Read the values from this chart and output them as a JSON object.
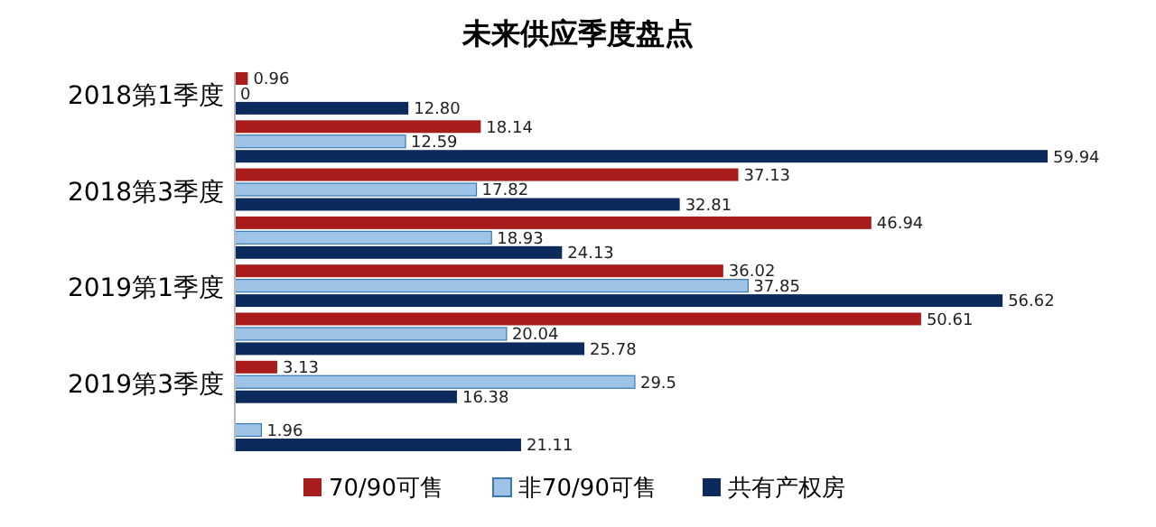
{
  "chart_data": {
    "type": "bar",
    "orientation": "horizontal",
    "title": "未来供应季度盘点",
    "categories": [
      "2018第1季度",
      null,
      "2018第3季度",
      null,
      "2019第1季度",
      null,
      "2019第3季度",
      null
    ],
    "series": [
      {
        "name": "70/90可售",
        "color": "#a81c1c",
        "values": [
          0.96,
          18.14,
          37.13,
          46.94,
          36.02,
          50.61,
          3.13,
          null
        ],
        "value_labels": [
          "0.96",
          "18.14",
          "37.13",
          "46.94",
          "36.02",
          "50.61",
          "3.13",
          null
        ]
      },
      {
        "name": "非70/90可售",
        "color": "#9dc3e6",
        "values": [
          0,
          12.59,
          17.82,
          18.93,
          37.85,
          20.04,
          29.5,
          1.96
        ],
        "value_labels": [
          "0",
          "12.59",
          "17.82",
          "18.93",
          "37.85",
          "20.04",
          "29.5",
          "1.96"
        ]
      },
      {
        "name": "共有产权房",
        "color": "#0d2a5c",
        "values": [
          12.8,
          59.94,
          32.81,
          24.13,
          56.62,
          25.78,
          16.38,
          21.11
        ],
        "value_labels": [
          "12.80",
          "59.94",
          "32.81",
          "24.13",
          "56.62",
          "25.78",
          "16.38",
          "21.11"
        ]
      }
    ],
    "legend": "bottom"
  }
}
